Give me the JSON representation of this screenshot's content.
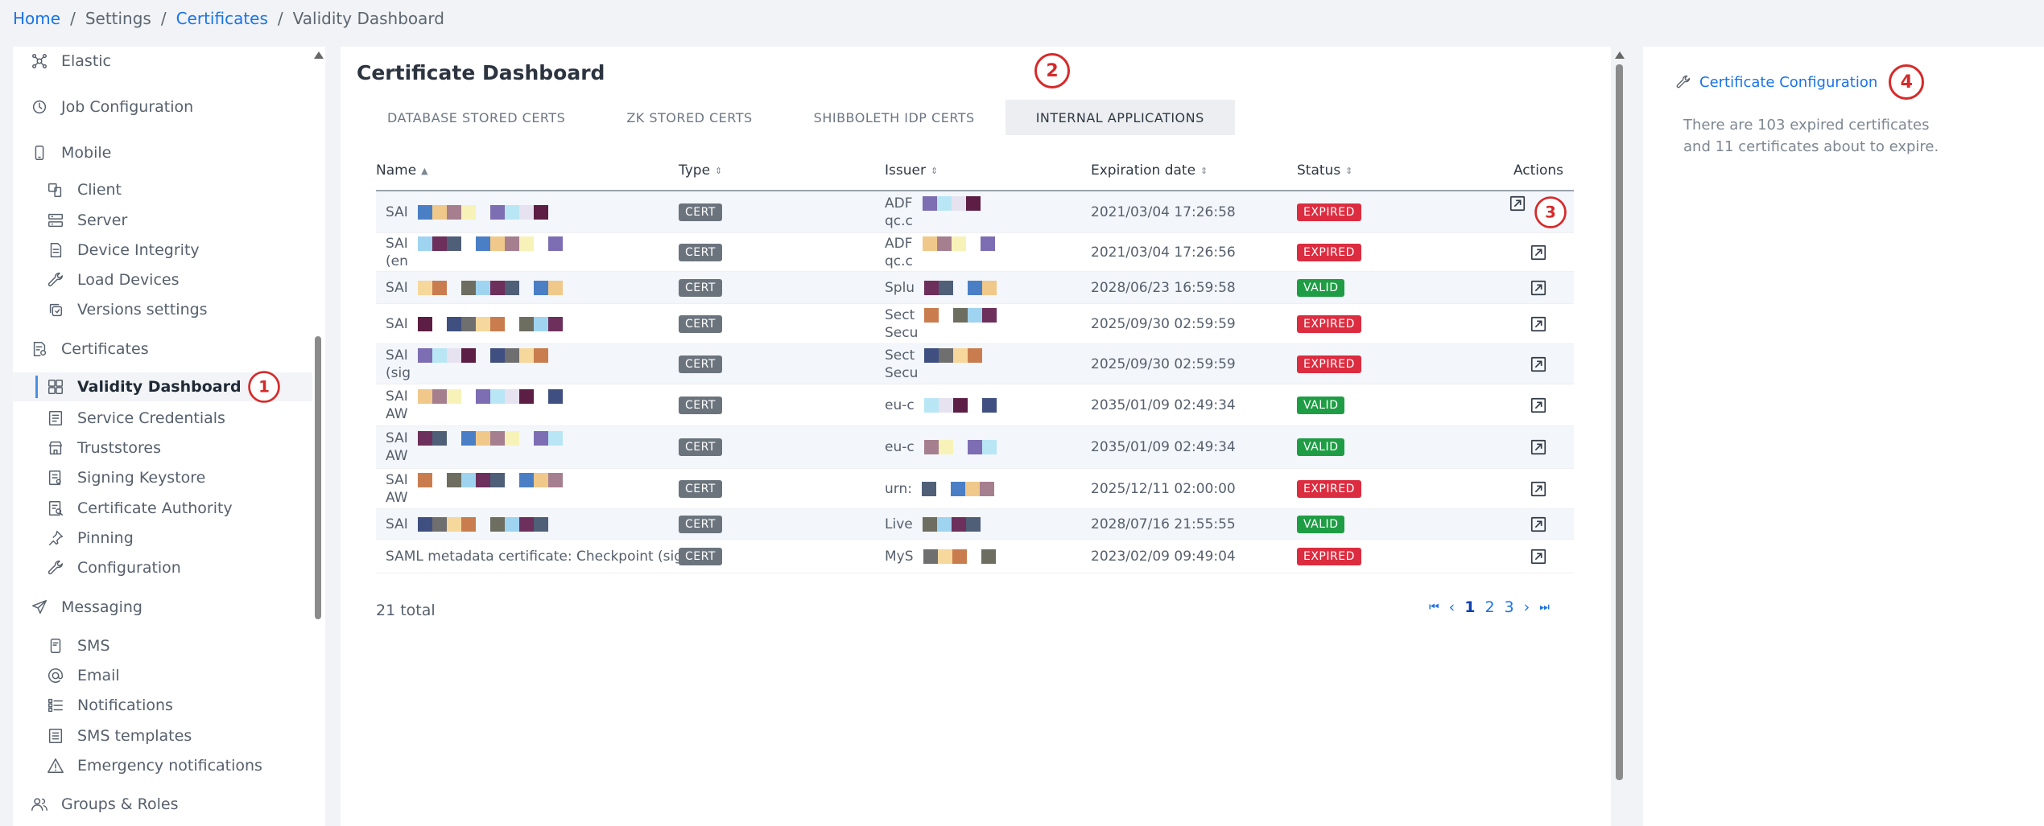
{
  "breadcrumb": {
    "home": "Home",
    "settings": "Settings",
    "certificates": "Certificates",
    "current": "Validity Dashboard",
    "sep": "/"
  },
  "sidebar": {
    "items": [
      {
        "label": "Elastic",
        "icon": "cluster-icon",
        "level": "group"
      },
      {
        "label": "Job Configuration",
        "icon": "clock-icon",
        "level": "group"
      },
      {
        "label": "Mobile",
        "icon": "phone-icon",
        "level": "group"
      },
      {
        "label": "Client",
        "icon": "devices-icon",
        "level": "sub"
      },
      {
        "label": "Server",
        "icon": "server-icon",
        "level": "sub"
      },
      {
        "label": "Device Integrity",
        "icon": "document-icon",
        "level": "sub"
      },
      {
        "label": "Load Devices",
        "icon": "wrench-icon",
        "level": "sub"
      },
      {
        "label": "Versions settings",
        "icon": "versions-icon",
        "level": "sub"
      },
      {
        "label": "Certificates",
        "icon": "certificate-icon",
        "level": "group"
      },
      {
        "label": "Validity Dashboard",
        "icon": "dashboard-icon",
        "level": "sub",
        "active": true
      },
      {
        "label": "Service Credentials",
        "icon": "credentials-icon",
        "level": "sub"
      },
      {
        "label": "Truststores",
        "icon": "store-icon",
        "level": "sub"
      },
      {
        "label": "Signing Keystore",
        "icon": "keystore-icon",
        "level": "sub"
      },
      {
        "label": "Certificate Authority",
        "icon": "authority-icon",
        "level": "sub"
      },
      {
        "label": "Pinning",
        "icon": "pin-icon",
        "level": "sub"
      },
      {
        "label": "Configuration",
        "icon": "wrench-icon",
        "level": "sub"
      },
      {
        "label": "Messaging",
        "icon": "send-icon",
        "level": "group"
      },
      {
        "label": "SMS",
        "icon": "sms-icon",
        "level": "sub"
      },
      {
        "label": "Email",
        "icon": "at-icon",
        "level": "sub"
      },
      {
        "label": "Notifications",
        "icon": "list-icon",
        "level": "sub"
      },
      {
        "label": "SMS templates",
        "icon": "template-icon",
        "level": "sub"
      },
      {
        "label": "Emergency notifications",
        "icon": "warning-icon",
        "level": "sub"
      },
      {
        "label": "Groups & Roles",
        "icon": "users-icon",
        "level": "group"
      }
    ]
  },
  "annotations": {
    "one": "1",
    "two": "2",
    "three": "3",
    "four": "4"
  },
  "main": {
    "title": "Certificate Dashboard",
    "tabs": [
      {
        "label": "DATABASE STORED CERTS",
        "active": false
      },
      {
        "label": "ZK STORED CERTS",
        "active": false
      },
      {
        "label": "SHIBBOLETH IDP CERTS",
        "active": false
      },
      {
        "label": "INTERNAL APPLICATIONS",
        "active": true
      }
    ],
    "columns": [
      "Name",
      "Type",
      "Issuer",
      "Expiration date",
      "Status",
      "Actions"
    ],
    "rows": [
      {
        "name": "SAI",
        "type": "CERT",
        "issuer": "ADF",
        "issuer2": "qc.c",
        "expiration": "2021/03/04 17:26:58",
        "status": "EXPIRED"
      },
      {
        "name": "SAI",
        "name2": "(en",
        "type": "CERT",
        "issuer": "ADF",
        "issuer2": "qc.c",
        "expiration": "2021/03/04 17:26:56",
        "status": "EXPIRED"
      },
      {
        "name": "SAI",
        "type": "CERT",
        "issuer": "Splu",
        "expiration": "2028/06/23 16:59:58",
        "status": "VALID"
      },
      {
        "name": "SAI",
        "type": "CERT",
        "issuer": "Sect",
        "issuer2": "Secu",
        "expiration": "2025/09/30 02:59:59",
        "status": "EXPIRED"
      },
      {
        "name": "SAI",
        "name2": "(sig",
        "type": "CERT",
        "issuer": "Sect",
        "issuer2": "Secu",
        "expiration": "2025/09/30 02:59:59",
        "status": "EXPIRED"
      },
      {
        "name": "SAI",
        "name2": "AW",
        "type": "CERT",
        "issuer": "eu-c",
        "expiration": "2035/01/09 02:49:34",
        "status": "VALID"
      },
      {
        "name": "SAI",
        "name2": "AW",
        "type": "CERT",
        "issuer": "eu-c",
        "expiration": "2035/01/09 02:49:34",
        "status": "VALID"
      },
      {
        "name": "SAI",
        "name2": "AW",
        "type": "CERT",
        "issuer": "urn:",
        "expiration": "2025/12/11 02:00:00",
        "status": "EXPIRED"
      },
      {
        "name": "SAI",
        "type": "CERT",
        "issuer": "Live",
        "expiration": "2028/07/16 21:55:55",
        "status": "VALID"
      },
      {
        "name": "SAML metadata certificate: Checkpoint (signing)",
        "type": "CERT",
        "issuer": "MyS",
        "expiration": "2023/02/09 09:49:04",
        "status": "EXPIRED"
      }
    ],
    "total": "21 total",
    "pager": {
      "first": "⏮",
      "prev": "‹",
      "pages": [
        "1",
        "2",
        "3"
      ],
      "next": "›",
      "last": "⏭"
    }
  },
  "right": {
    "link": "Certificate Configuration",
    "summary": "There are 103 expired certificates and 11 certificates about to expire."
  },
  "colors": {
    "link": "#1a73e8",
    "expired": "#dc2c3f",
    "valid": "#1f9d45",
    "annotation": "#d62a2a"
  }
}
